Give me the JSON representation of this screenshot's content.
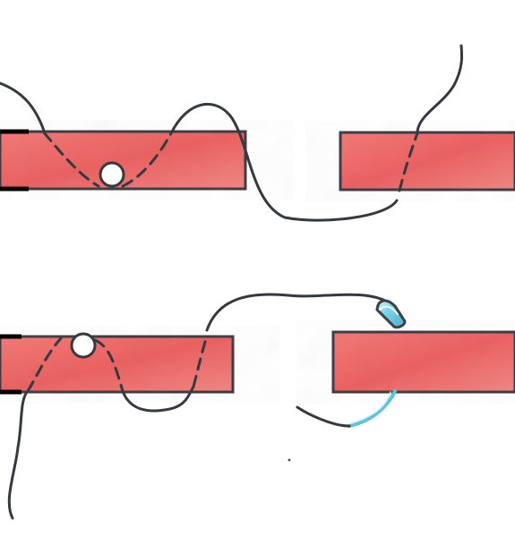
{
  "scene": {
    "description_visible_text": "",
    "colors": {
      "background": "#ffffff",
      "tissue_fill": "#ee6b6b",
      "tissue_fill_light": "#f3827f",
      "tissue_outline": "#3f3f46",
      "suture_thread": "#343a40",
      "needle_blue": "#5fc3dd",
      "needle_highlight": "#bfe9f2",
      "bead_fill": "#ffffff"
    },
    "icons": {
      "top_panel": "suture-stitch-icon",
      "bottom_panel": "needle-icon"
    }
  }
}
